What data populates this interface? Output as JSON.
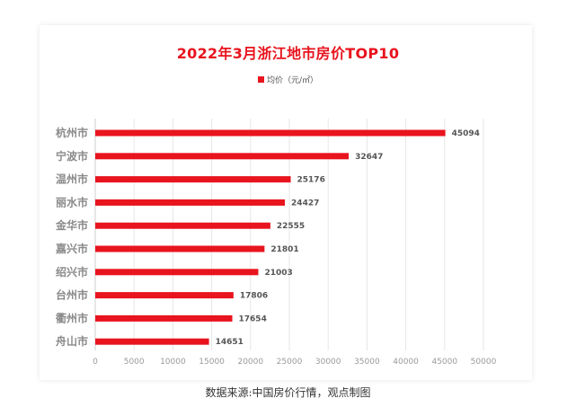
{
  "chart_data": {
    "type": "bar",
    "orientation": "horizontal",
    "title": "2022年3月浙江地市房价TOP10",
    "legend": "均价（元/㎡）",
    "legend_position": "top-center",
    "categories": [
      "杭州市",
      "宁波市",
      "温州市",
      "丽水市",
      "金华市",
      "嘉兴市",
      "绍兴市",
      "台州市",
      "衢州市",
      "舟山市"
    ],
    "values": [
      45094,
      32647,
      25176,
      24427,
      22555,
      21801,
      21003,
      17806,
      17654,
      14651
    ],
    "value_labels": [
      "45094",
      "32647",
      "25176",
      "24427",
      "22555",
      "21801",
      "21003",
      "17806",
      "17654",
      "14651"
    ],
    "xlim": [
      0,
      50000
    ],
    "xticks": [
      "0",
      "5000",
      "10000",
      "15000",
      "20000",
      "25000",
      "30000",
      "35000",
      "40000",
      "45000",
      "50000"
    ],
    "grid": true,
    "bar_color": "#e8141e"
  },
  "source": "数据来源:中国房价行情，观点制图"
}
